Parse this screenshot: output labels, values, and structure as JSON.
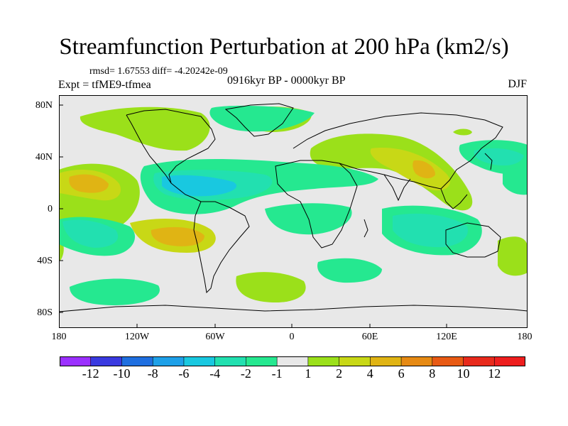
{
  "title": "Streamfunction Perturbation at 200 hPa (km2/s)",
  "stats": {
    "rmsd_label": "rmsd= 1.67553",
    "diff_label": "diff= -4.20242e-09"
  },
  "experiment": "Expt = tfME9-tfmea",
  "period": "0916kyr BP - 0000kyr BP",
  "season": "DJF",
  "map": {
    "lat_labels": [
      "80N",
      "40N",
      "0",
      "40S",
      "80S"
    ],
    "lon_labels": [
      "180",
      "120W",
      "60W",
      "0",
      "60E",
      "120E",
      "180"
    ]
  },
  "colorbar": {
    "labels": [
      "-12",
      "-10",
      "-8",
      "-6",
      "-4",
      "-2",
      "-1",
      "1",
      "2",
      "4",
      "6",
      "8",
      "10",
      "12"
    ],
    "colors": [
      "#9b30ff",
      "#3a3ae0",
      "#1f6fe0",
      "#1ea0e8",
      "#19c8e0",
      "#22e0b0",
      "#25e890",
      "#e8e8e8",
      "#9be01a",
      "#c8d816",
      "#e0b414",
      "#e68a14",
      "#e85a14",
      "#e82a1c",
      "#ee1e1e"
    ]
  },
  "chart_data": {
    "type": "contour-map",
    "variable": "Streamfunction Perturbation at 200 hPa",
    "units": "km2/s",
    "levels": [
      -12,
      -10,
      -8,
      -6,
      -4,
      -2,
      -1,
      1,
      2,
      4,
      6,
      8,
      10,
      12
    ],
    "xlim": [
      -180,
      180
    ],
    "ylim": [
      -90,
      90
    ]
  }
}
